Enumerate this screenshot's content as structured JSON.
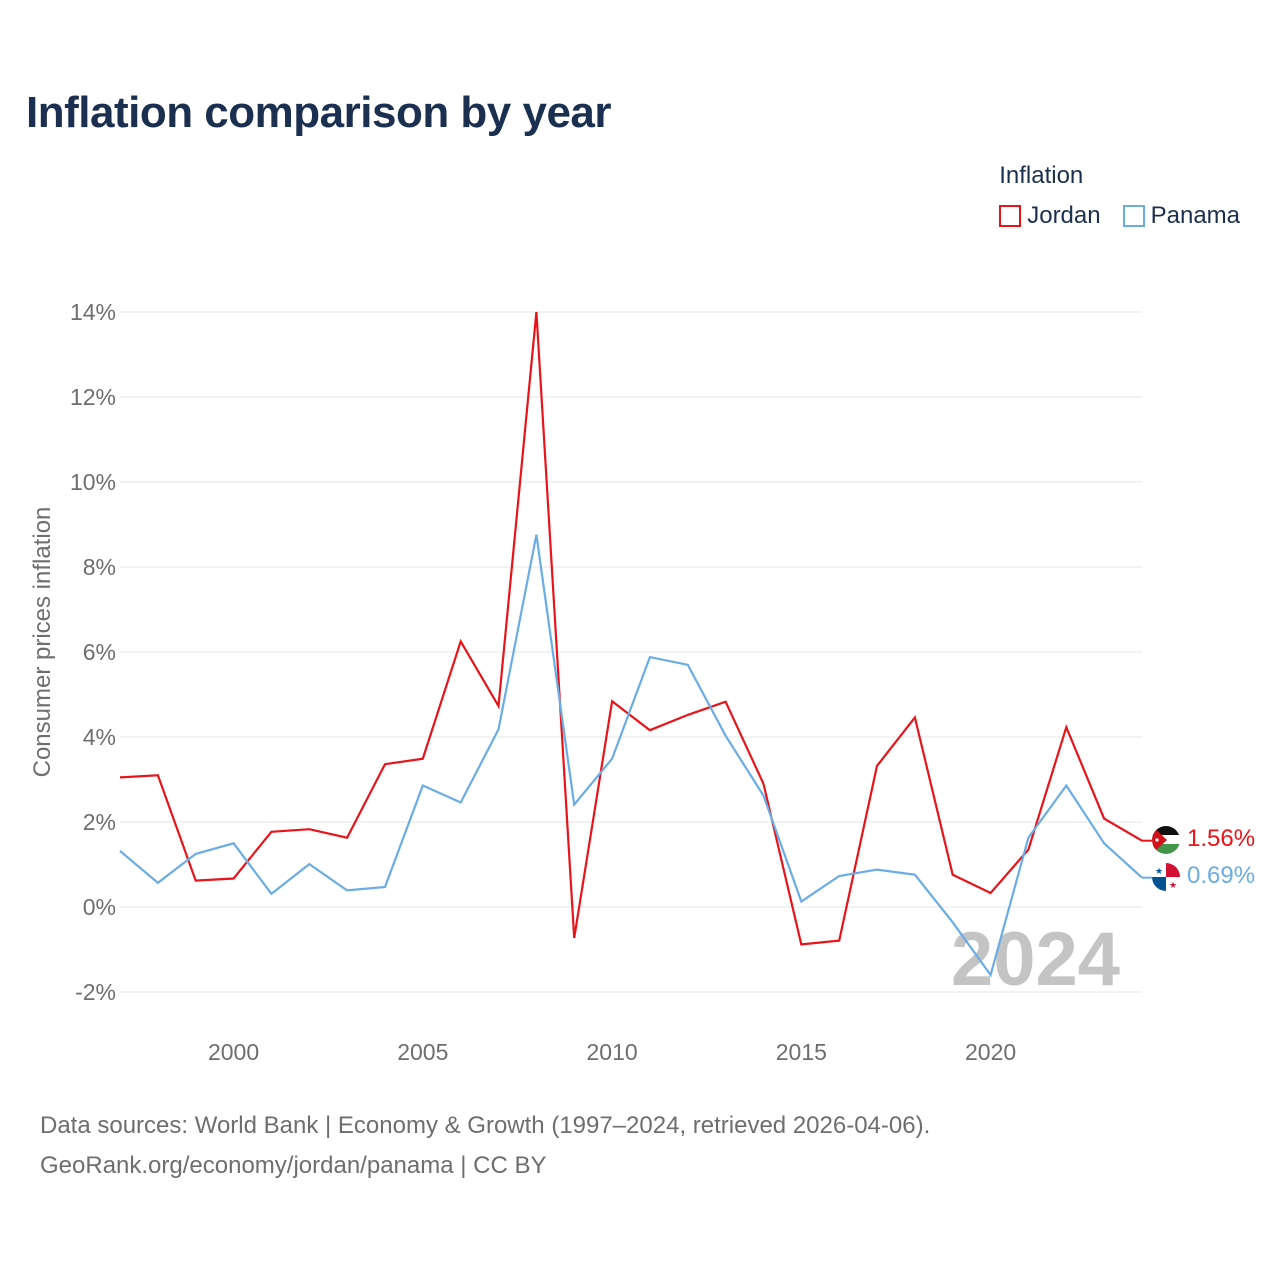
{
  "title": "Inflation comparison by year",
  "legend": {
    "title": "Inflation",
    "items": [
      {
        "name": "Jordan",
        "color": "#e8141a"
      },
      {
        "name": "Panama",
        "color": "#6aade4"
      }
    ]
  },
  "footer": {
    "line1": "Data sources: World Bank | Economy & Growth (1997–2024, retrieved 2026-04-06).",
    "line2": "GeoRank.org/economy/jordan/panama | CC BY"
  },
  "chart_data": {
    "type": "line",
    "title": "Inflation comparison by year",
    "ylabel": "Consumer prices inflation",
    "xlabel": "",
    "xlim": [
      1997,
      2024
    ],
    "ylim": [
      -2,
      14
    ],
    "yticks": [
      -2,
      0,
      2,
      4,
      6,
      8,
      10,
      12,
      14
    ],
    "ytick_labels": [
      "-2%",
      "0%",
      "2%",
      "4%",
      "6%",
      "8%",
      "10%",
      "12%",
      "14%"
    ],
    "xticks": [
      2000,
      2005,
      2010,
      2015,
      2020
    ],
    "xtick_labels": [
      "2000",
      "2005",
      "2010",
      "2015",
      "2020"
    ],
    "grid": true,
    "year_watermark": "2024",
    "x": [
      1997,
      1998,
      1999,
      2000,
      2001,
      2002,
      2003,
      2004,
      2005,
      2006,
      2007,
      2008,
      2009,
      2010,
      2011,
      2012,
      2013,
      2014,
      2015,
      2016,
      2017,
      2018,
      2019,
      2020,
      2021,
      2022,
      2023,
      2024
    ],
    "series": [
      {
        "name": "Jordan",
        "color": "#e8141a",
        "end_label": "1.56%",
        "values": [
          3.05,
          3.1,
          0.62,
          0.67,
          1.77,
          1.83,
          1.63,
          3.36,
          3.49,
          6.25,
          4.73,
          14.0,
          -0.73,
          4.84,
          4.16,
          4.52,
          4.83,
          2.9,
          -0.88,
          -0.79,
          3.32,
          4.46,
          0.76,
          0.33,
          1.35,
          4.23,
          2.08,
          1.56
        ]
      },
      {
        "name": "Panama",
        "color": "#6aade4",
        "end_label": "0.69%",
        "values": [
          1.32,
          0.57,
          1.25,
          1.5,
          0.31,
          1.01,
          0.39,
          0.47,
          2.86,
          2.46,
          4.18,
          8.76,
          2.41,
          3.49,
          5.88,
          5.7,
          4.03,
          2.62,
          0.13,
          0.73,
          0.88,
          0.76,
          -0.36,
          -1.6,
          1.63,
          2.86,
          1.5,
          0.69
        ]
      }
    ]
  }
}
